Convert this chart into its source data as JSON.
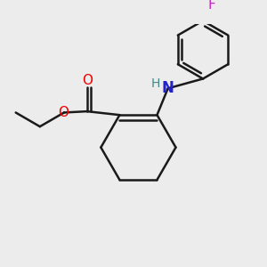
{
  "background_color": "#ececec",
  "bond_color": "#1a1a1a",
  "bond_width": 1.8,
  "atom_colors": {
    "O": "#ee0000",
    "N": "#2222cc",
    "H": "#448888",
    "F": "#cc22cc"
  },
  "font_size": 11,
  "font_size_H": 10
}
